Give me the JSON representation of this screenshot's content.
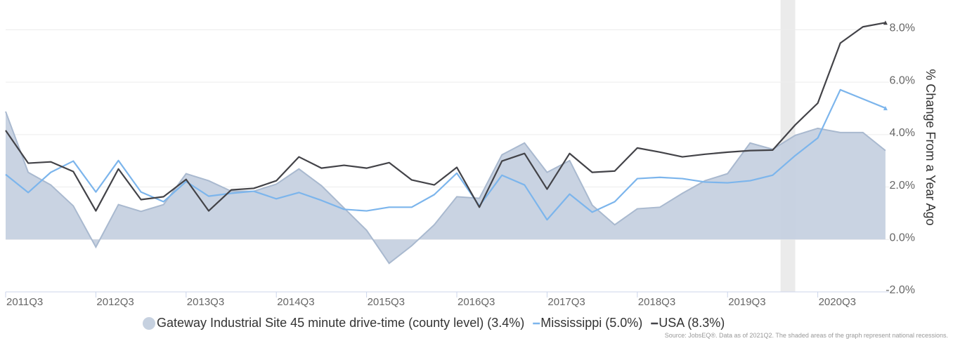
{
  "chart_data": {
    "type": "line",
    "y_axis_label": "% Change From a Year Ago",
    "source": "Source: JobsEQ®. Data as of 2021Q2. The shaded areas of the graph represent national recessions.",
    "categories": [
      "2011Q3",
      null,
      null,
      null,
      "2012Q3",
      null,
      null,
      null,
      "2013Q3",
      null,
      null,
      null,
      "2014Q3",
      null,
      null,
      null,
      "2015Q3",
      null,
      null,
      null,
      "2016Q3",
      null,
      null,
      null,
      "2017Q3",
      null,
      null,
      null,
      "2018Q3",
      null,
      null,
      null,
      "2019Q3",
      null,
      null,
      null,
      "2020Q3",
      null,
      null,
      null
    ],
    "series": [
      {
        "name": "Gateway Industrial Site 45 minute drive-time (county level) (3.4%)",
        "kind": "area",
        "color": "#c6d1e0",
        "line_color": "#a9b9cf",
        "values": [
          4.88,
          2.56,
          2.08,
          1.28,
          -0.29,
          1.33,
          1.07,
          1.33,
          2.51,
          2.24,
          1.84,
          1.84,
          2.11,
          2.69,
          2.05,
          1.2,
          0.35,
          -0.91,
          -0.24,
          0.56,
          1.63,
          1.57,
          3.23,
          3.68,
          2.56,
          3.01,
          1.31,
          0.56,
          1.17,
          1.23,
          1.76,
          2.24,
          2.51,
          3.68,
          3.44,
          3.97,
          4.24,
          4.08,
          4.08,
          3.39
        ]
      },
      {
        "name": "Mississippi (5.0%)",
        "kind": "line",
        "color": "#7cb5ec",
        "values": [
          2.48,
          1.79,
          2.56,
          2.99,
          1.81,
          3.01,
          1.81,
          1.44,
          2.21,
          1.65,
          1.76,
          1.84,
          1.55,
          1.79,
          1.49,
          1.15,
          1.09,
          1.23,
          1.23,
          1.71,
          2.53,
          1.28,
          2.45,
          2.08,
          0.75,
          1.73,
          1.04,
          1.44,
          2.32,
          2.37,
          2.32,
          2.19,
          2.16,
          2.24,
          2.45,
          3.2,
          3.87,
          5.71,
          5.36,
          5.01
        ]
      },
      {
        "name": "USA (8.3%)",
        "kind": "line",
        "color": "#434348",
        "values": [
          4.16,
          2.91,
          2.96,
          2.59,
          1.09,
          2.69,
          1.52,
          1.63,
          2.29,
          1.09,
          1.89,
          1.95,
          2.24,
          3.15,
          2.72,
          2.83,
          2.72,
          2.93,
          2.27,
          2.08,
          2.75,
          1.23,
          2.99,
          3.28,
          1.92,
          3.28,
          2.56,
          2.61,
          3.49,
          3.33,
          3.15,
          3.25,
          3.33,
          3.39,
          3.41,
          4.37,
          5.2,
          7.49,
          8.11,
          8.27
        ]
      }
    ],
    "recessions": [
      {
        "start": 34.35,
        "end": 35,
        "color": "#ebebeb"
      }
    ],
    "ylim": [
      -2,
      9
    ],
    "yticks": [
      {
        "value": -2,
        "label": "-2.0%"
      },
      {
        "value": 0,
        "label": "0.0%"
      },
      {
        "value": 2,
        "label": "2.0%"
      },
      {
        "value": 4,
        "label": "4.0%"
      },
      {
        "value": 6,
        "label": "6.0%"
      },
      {
        "value": 8,
        "label": "8.0%"
      }
    ],
    "grid": true
  }
}
